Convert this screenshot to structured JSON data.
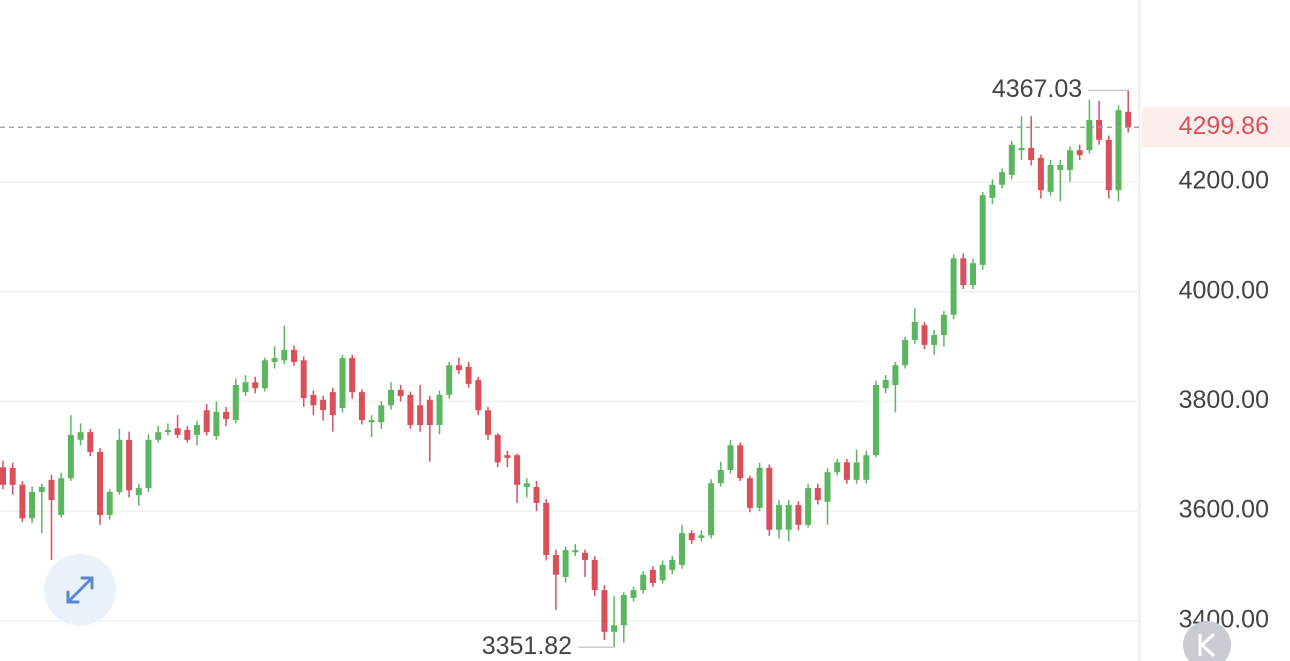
{
  "chart_data": {
    "type": "candlestick",
    "ylim": [
      3326.8,
      4531.8
    ],
    "yticks": [
      {
        "value": 3400,
        "label": "3400.00"
      },
      {
        "value": 3600,
        "label": "3600.00"
      },
      {
        "value": 3800,
        "label": "3800.00"
      },
      {
        "value": 4000,
        "label": "4000.00"
      },
      {
        "value": 4200,
        "label": "4200.00"
      }
    ],
    "grid": true,
    "up_color": "#5cb660",
    "down_color": "#d9505a",
    "open": [
      3680,
      3679,
      3648,
      3587,
      3635,
      3657,
      3593,
      3660,
      3730,
      3744,
      3708,
      3593,
      3635,
      3730,
      3629,
      3642,
      3730,
      3744,
      3751,
      3748,
      3739,
      3784,
      3737,
      3781,
      3766,
      3817,
      3835,
      3824,
      3872,
      3875,
      3894,
      3875,
      3812,
      3803,
      3817,
      3788,
      3879,
      3817,
      3762,
      3762,
      3793,
      3821,
      3812,
      3793,
      3803,
      3757,
      3812,
      3866,
      3863,
      3839,
      3784,
      3739,
      3702,
      3702,
      3644,
      3644,
      3615,
      3520,
      3480,
      3525,
      3524,
      3511,
      3456,
      3380,
      3392,
      3442,
      3456,
      3493,
      3474,
      3493,
      3502,
      3560,
      3551,
      3556,
      3651,
      3675,
      3720,
      3660,
      3606,
      3679,
      3566,
      3566,
      3611,
      3575,
      3642,
      3617,
      3671,
      3689,
      3657,
      3657,
      3702,
      3824,
      3830,
      3866,
      3912,
      3939,
      3903,
      3921,
      3958,
      4061,
      4012,
      4049,
      4171,
      4195,
      4213,
      4258,
      4262,
      4244,
      4182,
      4222,
      4222,
      4258,
      4258,
      4313,
      4277,
      4185,
      4328
    ],
    "high": [
      3692,
      3688,
      3655,
      3645,
      3650,
      3666,
      3670,
      3775,
      3760,
      3750,
      3715,
      3640,
      3750,
      3745,
      3650,
      3740,
      3755,
      3760,
      3775,
      3755,
      3765,
      3795,
      3800,
      3790,
      3842,
      3848,
      3845,
      3880,
      3900,
      3938,
      3902,
      3882,
      3820,
      3810,
      3825,
      3885,
      3885,
      3822,
      3775,
      3800,
      3835,
      3830,
      3818,
      3830,
      3810,
      3820,
      3872,
      3880,
      3872,
      3845,
      3790,
      3742,
      3710,
      3705,
      3660,
      3655,
      3622,
      3530,
      3535,
      3540,
      3530,
      3518,
      3465,
      3445,
      3452,
      3462,
      3490,
      3500,
      3510,
      3518,
      3575,
      3565,
      3565,
      3658,
      3690,
      3730,
      3725,
      3665,
      3688,
      3685,
      3620,
      3620,
      3618,
      3650,
      3650,
      3678,
      3695,
      3695,
      3712,
      3710,
      3838,
      3848,
      3872,
      3918,
      3970,
      3945,
      3930,
      3965,
      4068,
      4070,
      4060,
      4182,
      4205,
      4225,
      4275,
      4320,
      4320,
      4250,
      4240,
      4240,
      4265,
      4268,
      4350,
      4348,
      4285,
      4340,
      4367.03
    ],
    "low": [
      3640,
      3630,
      3580,
      3578,
      3560,
      3511,
      3588,
      3655,
      3720,
      3700,
      3575,
      3585,
      3630,
      3625,
      3610,
      3635,
      3725,
      3738,
      3733,
      3725,
      3720,
      3738,
      3730,
      3755,
      3760,
      3810,
      3815,
      3818,
      3860,
      3868,
      3865,
      3790,
      3775,
      3765,
      3745,
      3780,
      3805,
      3758,
      3735,
      3750,
      3785,
      3800,
      3750,
      3745,
      3690,
      3740,
      3805,
      3850,
      3825,
      3775,
      3730,
      3680,
      3680,
      3615,
      3625,
      3600,
      3510,
      3420,
      3470,
      3518,
      3480,
      3445,
      3365,
      3351.82,
      3360,
      3435,
      3450,
      3462,
      3468,
      3485,
      3495,
      3540,
      3545,
      3550,
      3645,
      3668,
      3655,
      3598,
      3600,
      3555,
      3550,
      3545,
      3565,
      3570,
      3612,
      3575,
      3665,
      3650,
      3650,
      3650,
      3698,
      3815,
      3780,
      3860,
      3905,
      3895,
      3885,
      3900,
      3950,
      4005,
      4005,
      4040,
      4160,
      4188,
      4205,
      4240,
      4230,
      4170,
      4175,
      4165,
      4200,
      4240,
      4252,
      4268,
      4170,
      4165,
      4290
    ],
    "close": [
      3648,
      3648,
      3587,
      3635,
      3644,
      3620,
      3660,
      3739,
      3744,
      3708,
      3593,
      3635,
      3730,
      3638,
      3642,
      3730,
      3744,
      3748,
      3739,
      3730,
      3757,
      3744,
      3781,
      3768,
      3830,
      3835,
      3824,
      3875,
      3879,
      3894,
      3872,
      3806,
      3793,
      3784,
      3775,
      3879,
      3817,
      3766,
      3766,
      3793,
      3821,
      3810,
      3757,
      3757,
      3757,
      3812,
      3866,
      3857,
      3832,
      3784,
      3739,
      3689,
      3697,
      3648,
      3651,
      3615,
      3520,
      3484,
      3529,
      3529,
      3511,
      3456,
      3380,
      3392,
      3447,
      3456,
      3484,
      3469,
      3502,
      3511,
      3560,
      3547,
      3556,
      3651,
      3675,
      3720,
      3660,
      3606,
      3679,
      3566,
      3611,
      3611,
      3575,
      3642,
      3620,
      3671,
      3689,
      3657,
      3689,
      3702,
      3830,
      3839,
      3866,
      3912,
      3945,
      3903,
      3921,
      3958,
      4061,
      4012,
      4052,
      4176,
      4195,
      4218,
      4268,
      4262,
      4240,
      4185,
      4231,
      4231,
      4258,
      4249,
      4313,
      4277,
      4185,
      4331,
      4299.86
    ]
  }
}
